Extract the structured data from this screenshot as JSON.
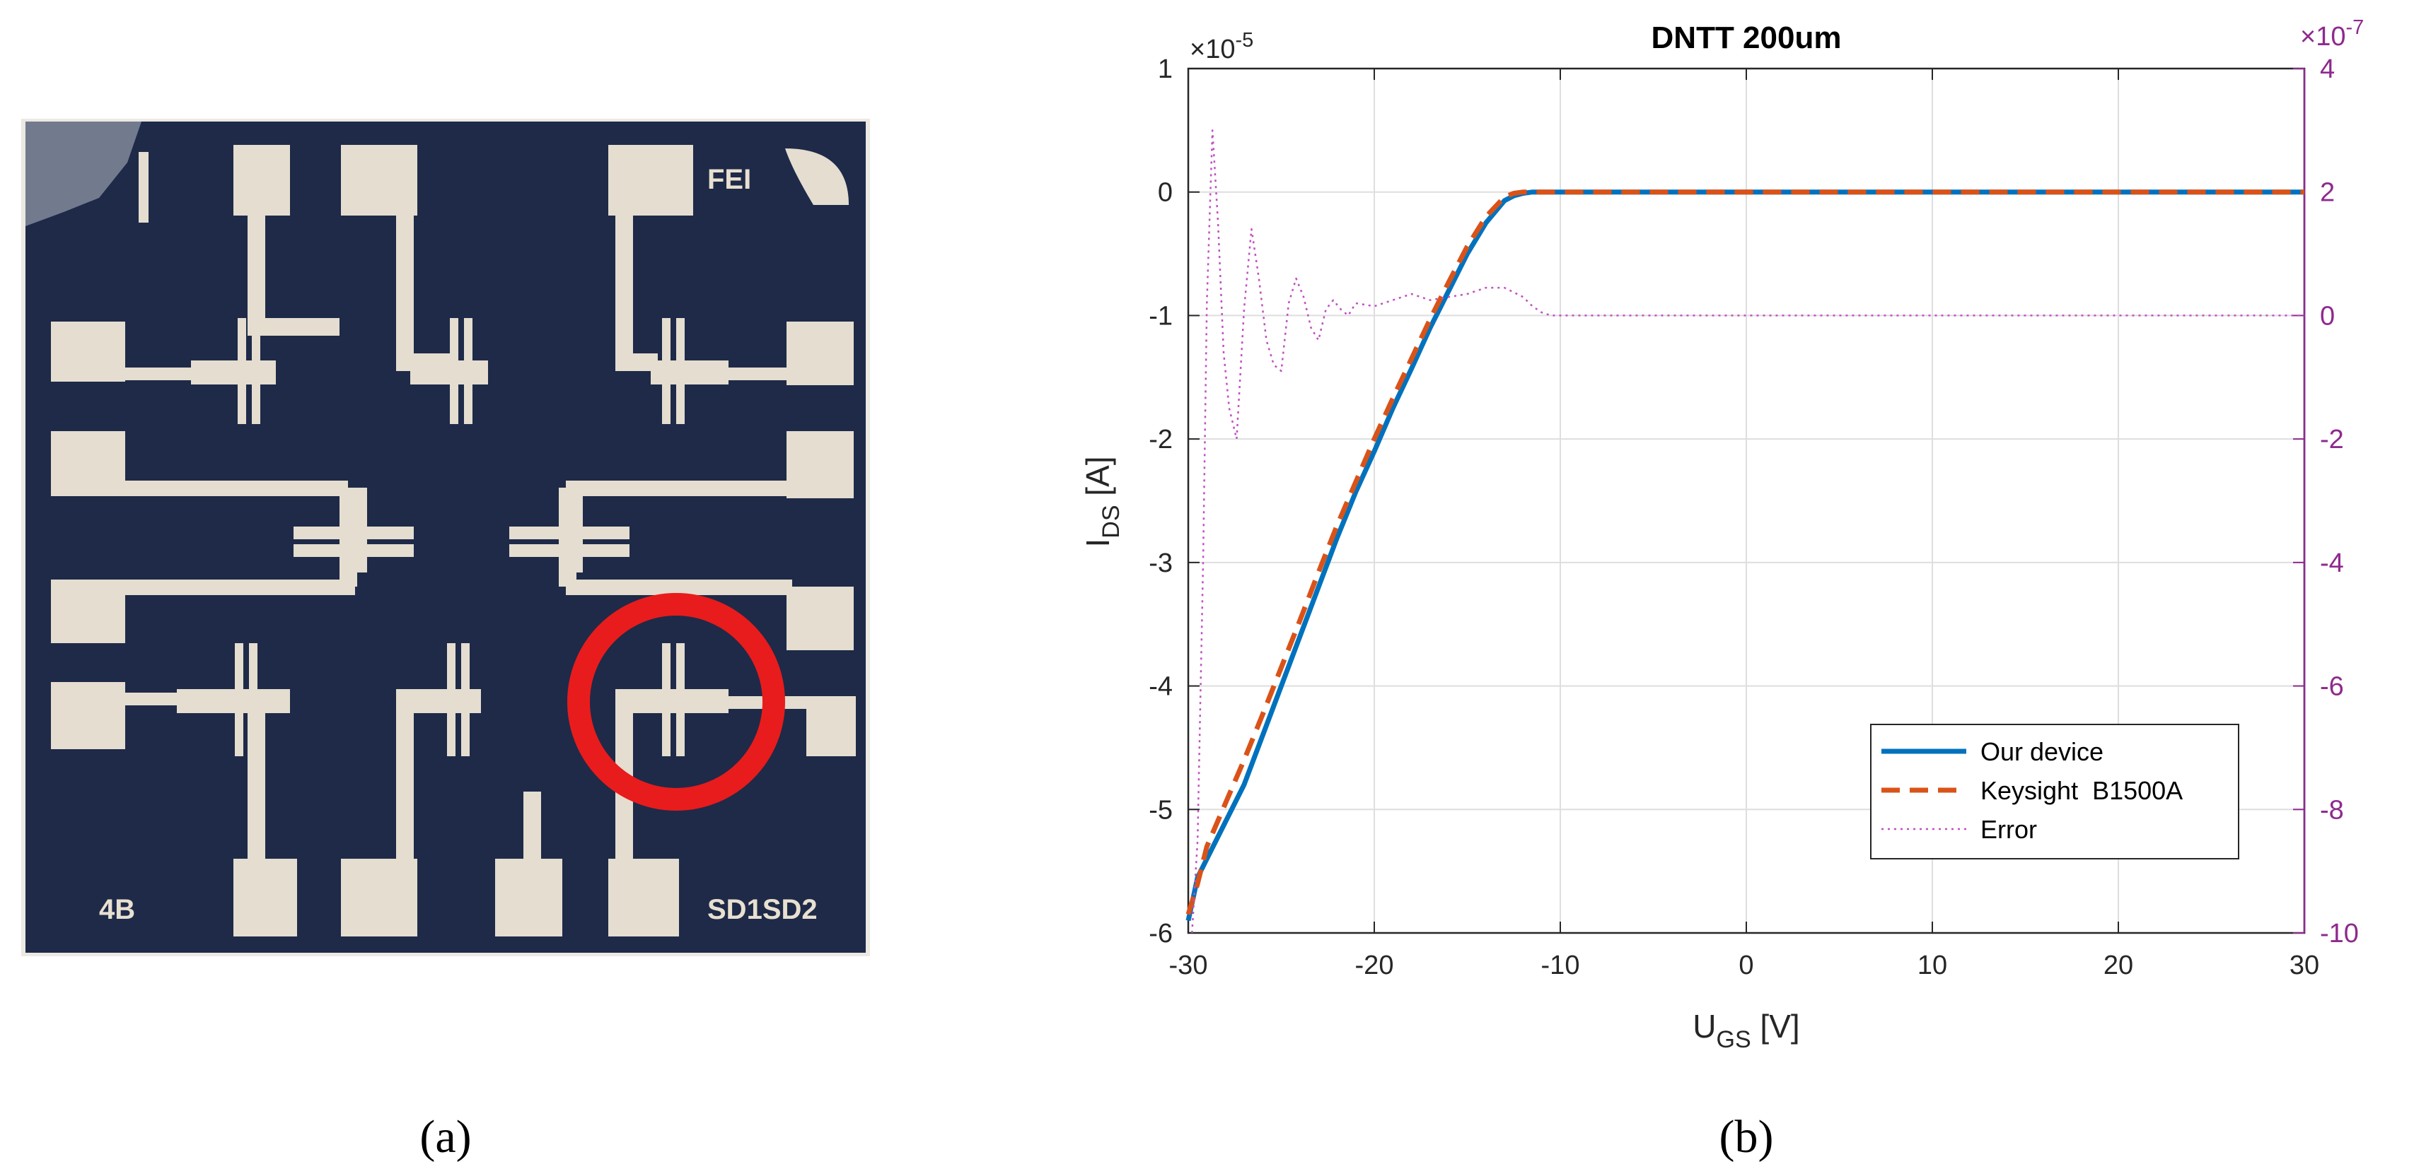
{
  "panels": {
    "a_label": "(a)",
    "b_label": "(b)"
  },
  "photo": {
    "chip_labels": [
      "FEI",
      "4B",
      "SD1SD2"
    ],
    "marker_color": "#e81c1c",
    "substrate_color": "#1e2a48",
    "electrode_color": "#e4ddd0"
  },
  "chart_data": {
    "type": "line",
    "title": "DNTT 200um",
    "xlabel": "U",
    "xlabel_sub": "GS",
    "xlabel_unit": " [V]",
    "ylabel": "I",
    "ylabel_sub": "DS",
    "ylabel_unit": " [A]",
    "xlim": [
      -30,
      30
    ],
    "x_ticks": [
      -30,
      -20,
      -10,
      0,
      10,
      20,
      30
    ],
    "ylim_left": [
      -6,
      1
    ],
    "y_ticks_left": [
      -6,
      -5,
      -4,
      -3,
      -2,
      -1,
      0,
      1
    ],
    "left_exponent": "×10",
    "left_exponent_power": "-5",
    "ylim_right": [
      -10,
      4
    ],
    "y_ticks_right": [
      -10,
      -8,
      -6,
      -4,
      -2,
      0,
      2,
      4
    ],
    "right_exponent": "×10",
    "right_exponent_power": "-7",
    "grid": true,
    "legend_position": "bottom-right",
    "series": [
      {
        "name": "Our device",
        "axis": "left",
        "color": "#0072bd",
        "style": "solid",
        "x": [
          -30,
          -29.5,
          -29,
          -28,
          -27,
          -26,
          -25,
          -24,
          -23,
          -22,
          -21,
          -20,
          -19,
          -18,
          -17,
          -16,
          -15,
          -14,
          -13,
          -12.5,
          -12,
          -11.5,
          -11,
          -10,
          -5,
          0,
          10,
          20,
          30
        ],
        "y": [
          -5.9,
          -5.55,
          -5.4,
          -5.1,
          -4.8,
          -4.4,
          -4.0,
          -3.6,
          -3.2,
          -2.8,
          -2.43,
          -2.1,
          -1.75,
          -1.43,
          -1.1,
          -0.8,
          -0.5,
          -0.25,
          -0.07,
          -0.03,
          -0.01,
          0,
          0,
          0,
          0,
          0,
          0,
          0,
          0
        ]
      },
      {
        "name": "Keysight  B1500A",
        "axis": "left",
        "color": "#d95319",
        "style": "dashed",
        "x": [
          -30,
          -29.5,
          -29,
          -28,
          -27,
          -26,
          -25,
          -24,
          -23,
          -22,
          -21,
          -20,
          -19,
          -18,
          -17,
          -16,
          -15,
          -14,
          -13,
          -12.5,
          -12,
          -11.5,
          -11,
          -10,
          -5,
          0,
          10,
          20,
          30
        ],
        "y": [
          -5.85,
          -5.6,
          -5.3,
          -4.95,
          -4.6,
          -4.23,
          -3.85,
          -3.47,
          -3.08,
          -2.7,
          -2.35,
          -2.0,
          -1.67,
          -1.35,
          -1.03,
          -0.73,
          -0.44,
          -0.2,
          -0.04,
          -0.01,
          0,
          0,
          0,
          0,
          0,
          0,
          0,
          0,
          0
        ]
      },
      {
        "name": "Error",
        "axis": "right",
        "color": "#c050c0",
        "style": "dotted",
        "x": [
          -29.8,
          -29.5,
          -29.2,
          -29,
          -28.7,
          -28.4,
          -28.1,
          -27.8,
          -27.4,
          -27,
          -26.6,
          -26.2,
          -25.8,
          -25.4,
          -25,
          -24.6,
          -24.2,
          -23.8,
          -23.4,
          -23,
          -22.6,
          -22.2,
          -21.8,
          -21.4,
          -21,
          -20,
          -19,
          -18,
          -17,
          -16,
          -15,
          -14,
          -13,
          -12,
          -11.5,
          -11,
          -10.5,
          -10,
          0,
          10,
          20,
          30
        ],
        "y": [
          -10,
          -8.5,
          -4,
          0.2,
          3.0,
          1.5,
          -0.6,
          -1.5,
          -2.0,
          0.1,
          1.4,
          0.6,
          -0.4,
          -0.8,
          -0.9,
          0.2,
          0.6,
          0.3,
          -0.2,
          -0.4,
          0.1,
          0.25,
          0.1,
          0.0,
          0.2,
          0.15,
          0.25,
          0.35,
          0.25,
          0.3,
          0.35,
          0.45,
          0.45,
          0.3,
          0.15,
          0.05,
          0,
          0,
          0,
          0,
          0,
          0
        ]
      }
    ]
  }
}
